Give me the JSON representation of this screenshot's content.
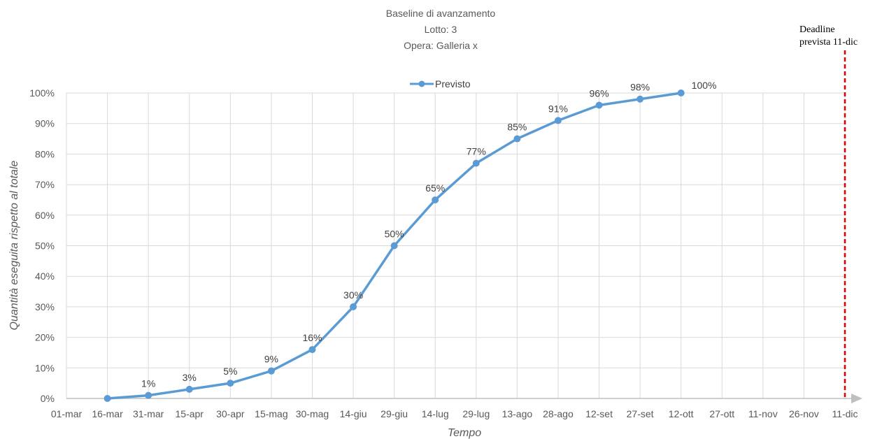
{
  "chart_data": {
    "type": "line",
    "title_lines": [
      "Baseline di avanzamento",
      "Lotto: 3",
      "Opera: Galleria x"
    ],
    "xlabel": "Tempo",
    "ylabel": "Quantità eseguita rispetto al totale",
    "categories": [
      "01-mar",
      "16-mar",
      "31-mar",
      "15-apr",
      "30-apr",
      "15-mag",
      "30-mag",
      "14-giu",
      "29-giu",
      "14-lug",
      "29-lug",
      "13-ago",
      "28-ago",
      "12-set",
      "27-set",
      "12-ott",
      "27-ott",
      "11-nov",
      "26-nov",
      "11-dic"
    ],
    "y_ticks": [
      "0%",
      "10%",
      "20%",
      "30%",
      "40%",
      "50%",
      "60%",
      "70%",
      "80%",
      "90%",
      "100%"
    ],
    "ylim": [
      0,
      100
    ],
    "grid": true,
    "legend": "top-center",
    "series": [
      {
        "name": "Previsto",
        "color": "#5B9BD5",
        "x": [
          "16-mar",
          "31-mar",
          "15-apr",
          "30-apr",
          "15-mag",
          "30-mag",
          "14-giu",
          "29-giu",
          "14-lug",
          "29-lug",
          "13-ago",
          "28-ago",
          "12-set",
          "27-set",
          "12-ott"
        ],
        "values": [
          0,
          1,
          3,
          5,
          9,
          16,
          30,
          50,
          65,
          77,
          85,
          91,
          96,
          98,
          100
        ],
        "data_labels": [
          "",
          "1%",
          "3%",
          "5%",
          "9%",
          "16%",
          "30%",
          "50%",
          "65%",
          "77%",
          "85%",
          "91%",
          "96%",
          "98%",
          "100%"
        ]
      }
    ],
    "deadline": {
      "x": "11-dic",
      "label_lines": [
        "Deadline",
        "prevista 11-dic"
      ],
      "color": "#E00000"
    }
  }
}
